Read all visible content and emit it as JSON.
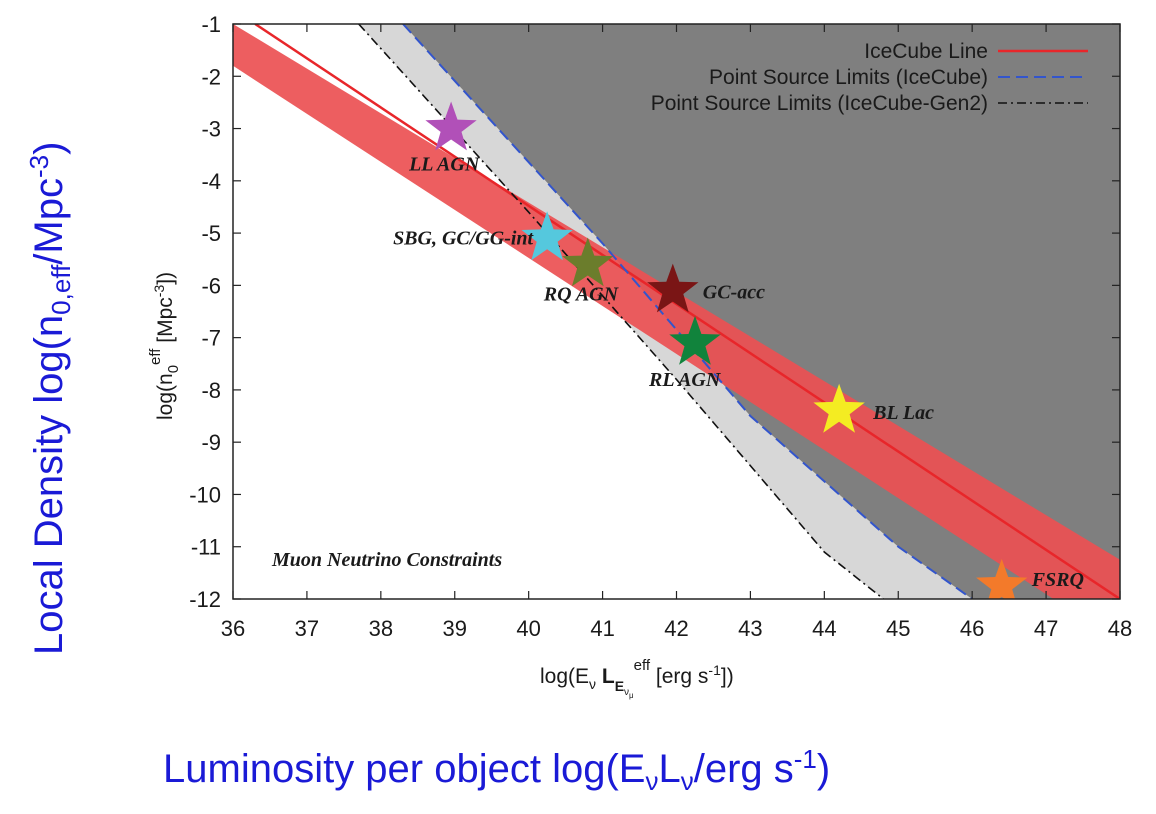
{
  "chart_data": {
    "type": "line",
    "xlim": [
      36,
      48
    ],
    "ylim": [
      -12,
      -1
    ],
    "x_ticks": [
      "36",
      "37",
      "38",
      "39",
      "40",
      "41",
      "42",
      "43",
      "44",
      "45",
      "46",
      "47",
      "48"
    ],
    "y_ticks": [
      "-1",
      "-2",
      "-3",
      "-4",
      "-5",
      "-6",
      "-7",
      "-8",
      "-9",
      "-10",
      "-11",
      "-12"
    ],
    "xlabel": {
      "main": "log(E",
      "nu": "ν",
      "L": " L",
      "E": "E",
      "numu": "ν",
      "mu": "μ",
      "eff": "eff",
      "unit": " [erg s",
      "exp": "-1",
      "close": "])"
    },
    "ylabel": {
      "main": "log(n",
      "sub": "0",
      "eff": "eff",
      "unit": " [Mpc",
      "exp": "-3",
      "close": "])"
    },
    "legend_position": "top-right",
    "legend": [
      {
        "label": "IceCube Line",
        "color": "#e8262a",
        "style": "solid"
      },
      {
        "label": "Point Source Limits (IceCube)",
        "color": "#3355cc",
        "style": "dashed"
      },
      {
        "label": "Point Source Limits (IceCube-Gen2)",
        "color": "#111111",
        "style": "dashdot"
      }
    ],
    "icecube_line": {
      "x": [
        36.3,
        48.0
      ],
      "y": [
        -1.0,
        -12.0
      ]
    },
    "icecube_band": {
      "upper": {
        "x": [
          36.0,
          48.0
        ],
        "y": [
          -1.0,
          -11.25
        ]
      },
      "lower": {
        "x": [
          36.0,
          47.1
        ],
        "y": [
          -1.8,
          -12.0
        ]
      }
    },
    "ps_limit_icecube": {
      "x": [
        38.3,
        41.0,
        43.0,
        45.0,
        46.0
      ],
      "y": [
        -1.0,
        -5.2,
        -8.5,
        -11.0,
        -12.0
      ]
    },
    "ps_limit_icecube_gen2": {
      "x": [
        37.7,
        40.0,
        42.0,
        44.0,
        44.8
      ],
      "y": [
        -1.0,
        -4.6,
        -7.8,
        -11.1,
        -12.0
      ]
    },
    "sources": [
      {
        "label": "LL AGN",
        "x": 38.95,
        "y": -3.0,
        "color": "#b150b8"
      },
      {
        "label": "SBG, GC/GG-int",
        "x": 40.25,
        "y": -5.1,
        "color": "#55c8dd"
      },
      {
        "label": "RQ AGN",
        "x": 40.8,
        "y": -5.6,
        "color": "#6b7d2c"
      },
      {
        "label": "GC-acc",
        "x": 41.95,
        "y": -6.1,
        "color": "#7a1515"
      },
      {
        "label": "RL AGN",
        "x": 42.25,
        "y": -7.1,
        "color": "#11833c"
      },
      {
        "label": "BL Lac",
        "x": 44.2,
        "y": -8.4,
        "color": "#f4ec22"
      },
      {
        "label": "FSRQ",
        "x": 46.4,
        "y": -11.75,
        "color": "#f37a2a"
      }
    ],
    "annotation": "Muon Neutrino Constraints"
  },
  "outer_labels": {
    "y": {
      "main": "Local Density log(n",
      "sub": "0,eff",
      "unit": "/Mpc",
      "exp": "-3",
      "close": ")"
    },
    "x": {
      "main": "Luminosity per object log(E",
      "nu1": "ν",
      "L": "L",
      "nu2": "ν",
      "unit": "/erg s",
      "exp": "-1",
      "close": ")"
    }
  },
  "colors": {
    "excluded_region": "#7f7f7f",
    "gen2_region": "#d7d7d7",
    "band": "#ec5052",
    "line": "#e8262a"
  }
}
